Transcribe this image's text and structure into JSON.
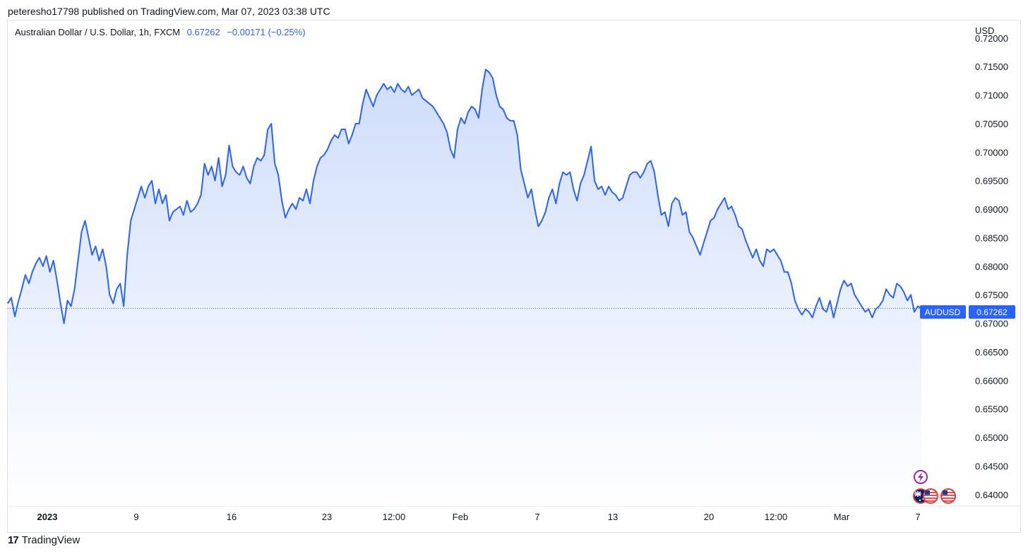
{
  "header": {
    "published": "peteresho17798 published on TradingView.com, Mar 07, 2023 03:38 UTC"
  },
  "legend": {
    "symbol": "Australian Dollar / U.S. Dollar, 1h, FXCM",
    "last": "0.67262",
    "change": "−0.00171 (−0.25%)"
  },
  "footer": {
    "logo_glyph": "17",
    "brand": "TradingView"
  },
  "colors": {
    "line": "#2962ff",
    "fill_top": "#cfddfb",
    "fill_bottom": "#ffffff",
    "label_bg": "#2962ff"
  },
  "icons": [
    "lightning-event-icon",
    "australia-flag-icon",
    "us-flag-icon",
    "us-flag-icon"
  ],
  "chart_data": {
    "type": "area",
    "currency": "USD",
    "y_ticks": [
      "0.72000",
      "0.71500",
      "0.71000",
      "0.70500",
      "0.70000",
      "0.69500",
      "0.69000",
      "0.68500",
      "0.68000",
      "0.67500",
      "0.67000",
      "0.66500",
      "0.66000",
      "0.65500",
      "0.65000",
      "0.64500",
      "0.64000"
    ],
    "x_ticks": [
      "2023",
      "9",
      "16",
      "23",
      "12:00",
      "Feb",
      "7",
      "13",
      "20",
      "12:00",
      "Mar",
      "7"
    ],
    "ylim": [
      0.638,
      0.7232
    ],
    "last_label": {
      "symbol": "AUDUSD",
      "value": "0.67262",
      "y": 0.67262
    },
    "series": [
      {
        "points": [
          [
            0,
            0.6735
          ],
          [
            1,
            0.6745
          ],
          [
            2,
            0.6712
          ],
          [
            3,
            0.6738
          ],
          [
            4,
            0.676
          ],
          [
            5,
            0.6785
          ],
          [
            6,
            0.677
          ],
          [
            7,
            0.679
          ],
          [
            8,
            0.6805
          ],
          [
            9,
            0.6815
          ],
          [
            10,
            0.68
          ],
          [
            11,
            0.6818
          ],
          [
            12,
            0.679
          ],
          [
            13,
            0.681
          ],
          [
            14,
            0.6775
          ],
          [
            15,
            0.6735
          ],
          [
            16,
            0.67
          ],
          [
            17,
            0.674
          ],
          [
            18,
            0.673
          ],
          [
            19,
            0.676
          ],
          [
            20,
            0.681
          ],
          [
            21,
            0.686
          ],
          [
            22,
            0.688
          ],
          [
            23,
            0.685
          ],
          [
            24,
            0.682
          ],
          [
            25,
            0.6835
          ],
          [
            26,
            0.681
          ],
          [
            27,
            0.683
          ],
          [
            28,
            0.68
          ],
          [
            29,
            0.675
          ],
          [
            30,
            0.6735
          ],
          [
            31,
            0.676
          ],
          [
            32,
            0.677
          ],
          [
            33,
            0.673
          ],
          [
            34,
            0.682
          ],
          [
            35,
            0.688
          ],
          [
            36,
            0.69
          ],
          [
            37,
            0.692
          ],
          [
            38,
            0.694
          ],
          [
            39,
            0.692
          ],
          [
            40,
            0.694
          ],
          [
            41,
            0.695
          ],
          [
            42,
            0.691
          ],
          [
            43,
            0.6935
          ],
          [
            44,
            0.691
          ],
          [
            45,
            0.6925
          ],
          [
            46,
            0.688
          ],
          [
            47,
            0.6895
          ],
          [
            48,
            0.69
          ],
          [
            49,
            0.6905
          ],
          [
            50,
            0.689
          ],
          [
            51,
            0.6915
          ],
          [
            52,
            0.6895
          ],
          [
            53,
            0.69
          ],
          [
            54,
            0.691
          ],
          [
            55,
            0.6925
          ],
          [
            56,
            0.698
          ],
          [
            57,
            0.696
          ],
          [
            58,
            0.6975
          ],
          [
            59,
            0.695
          ],
          [
            60,
            0.699
          ],
          [
            61,
            0.694
          ],
          [
            62,
            0.696
          ],
          [
            63,
            0.7012
          ],
          [
            64,
            0.6975
          ],
          [
            65,
            0.6965
          ],
          [
            66,
            0.696
          ],
          [
            67,
            0.6975
          ],
          [
            68,
            0.6955
          ],
          [
            69,
            0.6945
          ],
          [
            70,
            0.6975
          ],
          [
            71,
            0.699
          ],
          [
            72,
            0.6985
          ],
          [
            73,
            0.6995
          ],
          [
            74,
            0.704
          ],
          [
            75,
            0.705
          ],
          [
            76,
            0.698
          ],
          [
            77,
            0.696
          ],
          [
            78,
            0.6915
          ],
          [
            79,
            0.6885
          ],
          [
            80,
            0.69
          ],
          [
            81,
            0.691
          ],
          [
            82,
            0.69
          ],
          [
            83,
            0.692
          ],
          [
            84,
            0.6915
          ],
          [
            85,
            0.6935
          ],
          [
            86,
            0.691
          ],
          [
            87,
            0.695
          ],
          [
            88,
            0.6975
          ],
          [
            89,
            0.699
          ],
          [
            90,
            0.6995
          ],
          [
            91,
            0.7005
          ],
          [
            92,
            0.702
          ],
          [
            93,
            0.703
          ],
          [
            94,
            0.7025
          ],
          [
            95,
            0.704
          ],
          [
            96,
            0.704
          ],
          [
            97,
            0.7015
          ],
          [
            98,
            0.703
          ],
          [
            99,
            0.705
          ],
          [
            100,
            0.705
          ],
          [
            101,
            0.7085
          ],
          [
            102,
            0.711
          ],
          [
            103,
            0.7095
          ],
          [
            104,
            0.708
          ],
          [
            105,
            0.71
          ],
          [
            106,
            0.711
          ],
          [
            107,
            0.712
          ],
          [
            108,
            0.711
          ],
          [
            109,
            0.7115
          ],
          [
            110,
            0.7105
          ],
          [
            111,
            0.712
          ],
          [
            112,
            0.711
          ],
          [
            113,
            0.7105
          ],
          [
            114,
            0.7115
          ],
          [
            115,
            0.71
          ],
          [
            116,
            0.7105
          ],
          [
            117,
            0.711
          ],
          [
            118,
            0.7095
          ],
          [
            119,
            0.709
          ],
          [
            120,
            0.7085
          ],
          [
            121,
            0.708
          ],
          [
            122,
            0.707
          ],
          [
            123,
            0.706
          ],
          [
            124,
            0.705
          ],
          [
            125,
            0.7035
          ],
          [
            126,
            0.7005
          ],
          [
            127,
            0.699
          ],
          [
            128,
            0.704
          ],
          [
            129,
            0.706
          ],
          [
            130,
            0.705
          ],
          [
            131,
            0.707
          ],
          [
            132,
            0.708
          ],
          [
            133,
            0.7075
          ],
          [
            134,
            0.706
          ],
          [
            135,
            0.711
          ],
          [
            136,
            0.7145
          ],
          [
            137,
            0.714
          ],
          [
            138,
            0.713
          ],
          [
            139,
            0.71
          ],
          [
            140,
            0.708
          ],
          [
            141,
            0.7075
          ],
          [
            142,
            0.706
          ],
          [
            143,
            0.7055
          ],
          [
            144,
            0.7055
          ],
          [
            145,
            0.703
          ],
          [
            146,
            0.697
          ],
          [
            147,
            0.6945
          ],
          [
            148,
            0.692
          ],
          [
            149,
            0.6935
          ],
          [
            150,
            0.69
          ],
          [
            151,
            0.687
          ],
          [
            152,
            0.688
          ],
          [
            153,
            0.6895
          ],
          [
            154,
            0.692
          ],
          [
            155,
            0.6935
          ],
          [
            156,
            0.691
          ],
          [
            157,
            0.6945
          ],
          [
            158,
            0.6965
          ],
          [
            159,
            0.696
          ],
          [
            160,
            0.6965
          ],
          [
            161,
            0.6935
          ],
          [
            162,
            0.6915
          ],
          [
            163,
            0.6945
          ],
          [
            164,
            0.696
          ],
          [
            165,
            0.6985
          ],
          [
            166,
            0.701
          ],
          [
            167,
            0.695
          ],
          [
            168,
            0.6935
          ],
          [
            169,
            0.694
          ],
          [
            170,
            0.6925
          ],
          [
            171,
            0.694
          ],
          [
            172,
            0.693
          ],
          [
            173,
            0.6925
          ],
          [
            174,
            0.6915
          ],
          [
            175,
            0.692
          ],
          [
            176,
            0.694
          ],
          [
            177,
            0.696
          ],
          [
            178,
            0.6965
          ],
          [
            179,
            0.6965
          ],
          [
            180,
            0.6955
          ],
          [
            181,
            0.6965
          ],
          [
            182,
            0.698
          ],
          [
            183,
            0.6985
          ],
          [
            184,
            0.6965
          ],
          [
            185,
            0.6925
          ],
          [
            186,
            0.689
          ],
          [
            187,
            0.6895
          ],
          [
            188,
            0.687
          ],
          [
            189,
            0.691
          ],
          [
            190,
            0.692
          ],
          [
            191,
            0.6915
          ],
          [
            192,
            0.689
          ],
          [
            193,
            0.6895
          ],
          [
            194,
            0.686
          ],
          [
            195,
            0.685
          ],
          [
            196,
            0.6835
          ],
          [
            197,
            0.682
          ],
          [
            198,
            0.684
          ],
          [
            199,
            0.686
          ],
          [
            200,
            0.688
          ],
          [
            201,
            0.6885
          ],
          [
            202,
            0.69
          ],
          [
            203,
            0.691
          ],
          [
            204,
            0.692
          ],
          [
            205,
            0.69
          ],
          [
            206,
            0.6905
          ],
          [
            207,
            0.689
          ],
          [
            208,
            0.687
          ],
          [
            209,
            0.6865
          ],
          [
            210,
            0.6845
          ],
          [
            211,
            0.683
          ],
          [
            212,
            0.6815
          ],
          [
            213,
            0.683
          ],
          [
            214,
            0.681
          ],
          [
            215,
            0.68
          ],
          [
            216,
            0.683
          ],
          [
            217,
            0.6825
          ],
          [
            218,
            0.683
          ],
          [
            219,
            0.682
          ],
          [
            220,
            0.681
          ],
          [
            221,
            0.679
          ],
          [
            222,
            0.679
          ],
          [
            223,
            0.677
          ],
          [
            224,
            0.674
          ],
          [
            225,
            0.6725
          ],
          [
            226,
            0.6715
          ],
          [
            227,
            0.6725
          ],
          [
            228,
            0.672
          ],
          [
            229,
            0.671
          ],
          [
            230,
            0.673
          ],
          [
            231,
            0.6745
          ],
          [
            232,
            0.6725
          ],
          [
            233,
            0.672
          ],
          [
            234,
            0.674
          ],
          [
            235,
            0.671
          ],
          [
            236,
            0.6735
          ],
          [
            237,
            0.676
          ],
          [
            238,
            0.6775
          ],
          [
            239,
            0.6765
          ],
          [
            240,
            0.677
          ],
          [
            241,
            0.675
          ],
          [
            242,
            0.674
          ],
          [
            243,
            0.673
          ],
          [
            244,
            0.672
          ],
          [
            245,
            0.6725
          ],
          [
            246,
            0.671
          ],
          [
            247,
            0.6725
          ],
          [
            248,
            0.673
          ],
          [
            249,
            0.674
          ],
          [
            250,
            0.676
          ],
          [
            251,
            0.675
          ],
          [
            252,
            0.6745
          ],
          [
            253,
            0.677
          ],
          [
            254,
            0.6765
          ],
          [
            255,
            0.6755
          ],
          [
            256,
            0.674
          ],
          [
            257,
            0.675
          ],
          [
            258,
            0.672
          ],
          [
            259,
            0.673
          ],
          [
            260,
            0.6726
          ]
        ]
      }
    ]
  }
}
